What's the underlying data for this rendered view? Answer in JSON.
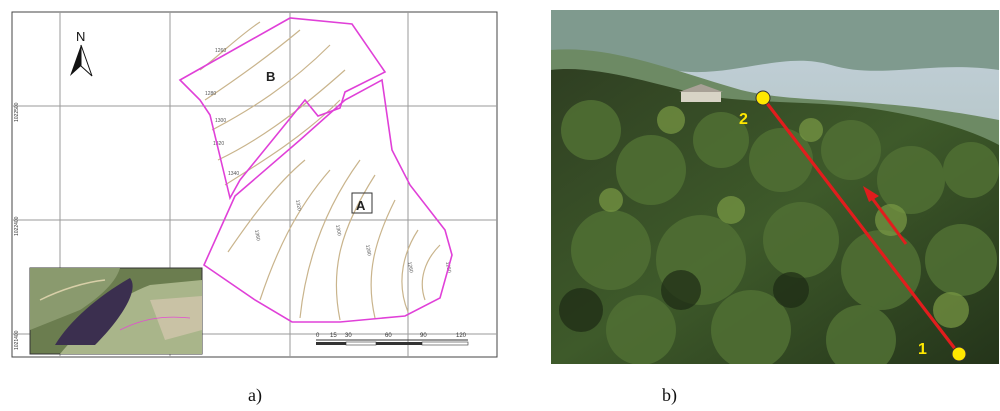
{
  "panel_a": {
    "north_label": "N",
    "zones": [
      {
        "label": "A"
      },
      {
        "label": "B"
      }
    ],
    "contour_labels": [
      "1260",
      "1280",
      "1300",
      "1320",
      "1340",
      "1360",
      "1250"
    ],
    "y_axis_labels": [
      "1022500",
      "1022400",
      "1021400"
    ],
    "scale_bar": [
      "0",
      "15",
      "30",
      "60",
      "90",
      "120"
    ],
    "caption": "a)"
  },
  "panel_b": {
    "points": [
      {
        "label": "1",
        "color": "#ffe800"
      },
      {
        "label": "2",
        "color": "#ffe800"
      }
    ],
    "transect_color": "#e11d1d",
    "caption": "b)"
  }
}
